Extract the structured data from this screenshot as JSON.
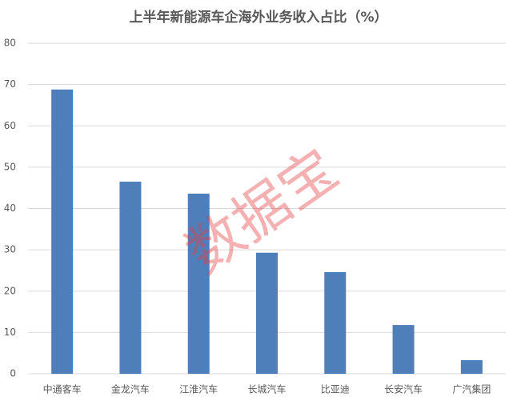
{
  "chart_data": {
    "type": "bar",
    "title": "上半年新能源车企海外业务收入占比（%）",
    "categories": [
      "中通客车",
      "金龙汽车",
      "江淮汽车",
      "长城汽车",
      "比亚迪",
      "长安汽车",
      "广汽集团"
    ],
    "values": [
      68.8,
      46.5,
      43.6,
      29.3,
      24.6,
      11.8,
      3.3
    ],
    "color": "#4f7fbb",
    "ylim": [
      0,
      80
    ],
    "yticks": [
      0,
      10,
      20,
      30,
      40,
      50,
      60,
      70,
      80
    ],
    "grid": true,
    "watermark": "数据宝"
  }
}
